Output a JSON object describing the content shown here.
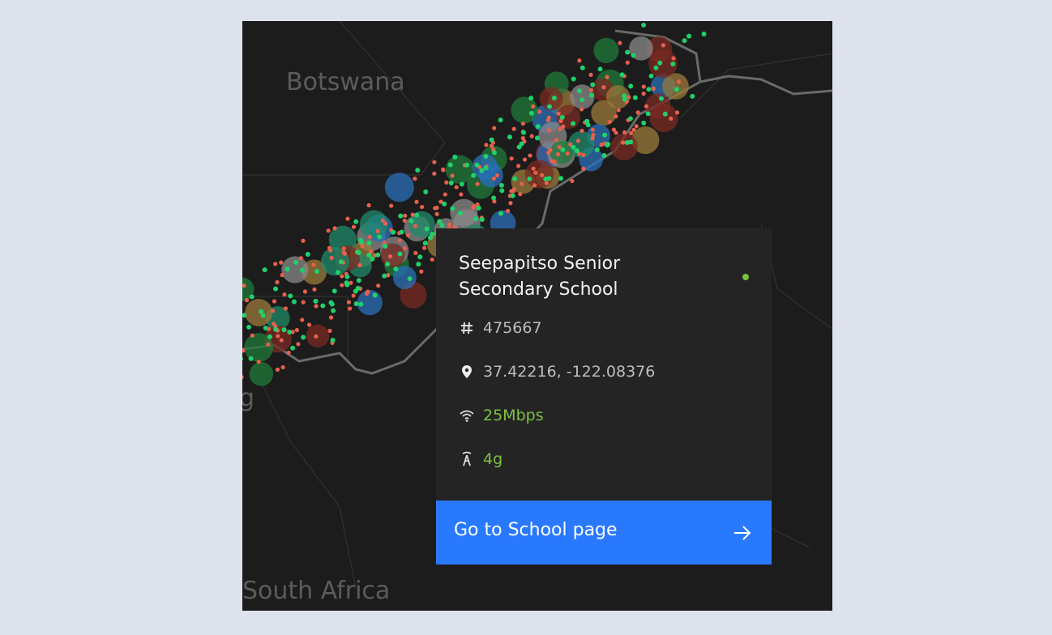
{
  "map": {
    "labels": [
      "Botswana",
      "South Africa",
      "g"
    ]
  },
  "tooltip": {
    "title": "Seepapitso Senior Secondary School",
    "id": "475667",
    "coordinates": "37.42216, -122.08376",
    "speed": "25Mbps",
    "technology": "4g",
    "button": "Go to School page"
  }
}
